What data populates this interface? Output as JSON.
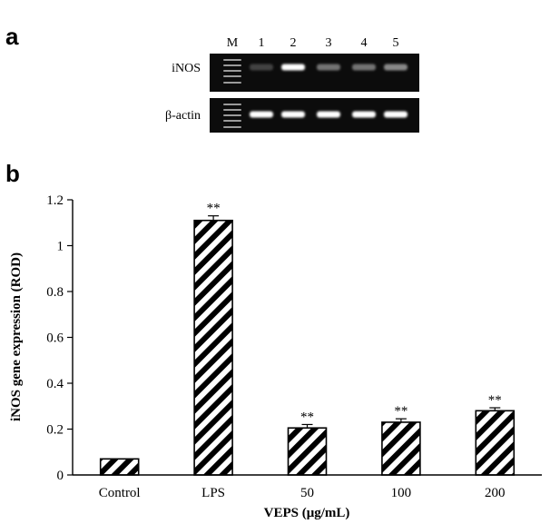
{
  "panel_a": {
    "label": "a",
    "lane_labels": [
      "M",
      "1",
      "2",
      "3",
      "4",
      "5"
    ],
    "rows": [
      {
        "name": "iNOS",
        "band_intensity": [
          null,
          0.12,
          1.0,
          0.35,
          0.35,
          0.45
        ]
      },
      {
        "name": "β-actin",
        "band_intensity": [
          null,
          1.0,
          1.0,
          1.0,
          1.0,
          1.0
        ]
      }
    ]
  },
  "panel_b": {
    "label": "b"
  },
  "chart_data": {
    "type": "bar",
    "categories": [
      "Control",
      "LPS",
      "50",
      "100",
      "200"
    ],
    "values": [
      0.07,
      1.11,
      0.205,
      0.23,
      0.28
    ],
    "errors": [
      0.0,
      0.02,
      0.015,
      0.015,
      0.013
    ],
    "annotations": [
      "",
      "**",
      "**",
      "**",
      "**"
    ],
    "xlabel": "VEPS (μg/mL)",
    "ylabel": "iNOS gene expression (ROD)",
    "ylim": [
      0,
      1.2
    ],
    "yticks": [
      "0",
      "0.2",
      "0.4",
      "0.6",
      "0.8",
      "1",
      "1.2"
    ],
    "bar_fill": "diagonal-hatch",
    "colors": {
      "bar_stripe": "#000000",
      "bar_bg": "#ffffff",
      "gel_bg": "#0c0c0c",
      "band": "#ffffff"
    }
  }
}
